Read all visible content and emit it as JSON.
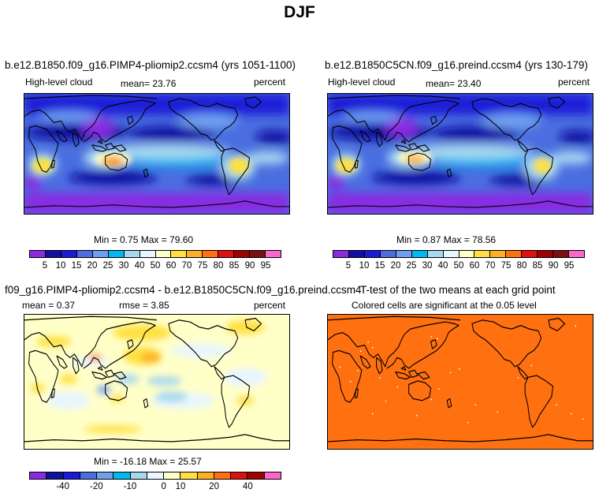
{
  "figure": {
    "title": "DJF"
  },
  "panels": [
    {
      "id": "case",
      "title": "b.e12.B1850.f09_g16.PIMP4-pliomip2.ccsm4 (yrs 1051-1100)",
      "left_label": "High-level cloud",
      "mean_label": "mean=  23.76",
      "units": "percent",
      "minmax": "Min =   0.75 Max =  79.60"
    },
    {
      "id": "control",
      "title": "b.e12.B1850C5CN.f09_g16.preind.ccsm4 (yrs 130-179)",
      "left_label": "High-level cloud",
      "mean_label": "mean=  23.40",
      "units": "percent",
      "minmax": "Min =   0.87 Max =  78.56"
    },
    {
      "id": "difference",
      "title": "f09_g16.PIMP4-pliomip2.ccsm4 - b.e12.B1850C5CN.f09_g16.preind.ccsm4",
      "left_label": "mean =   0.37",
      "mean_label": "rmse =   3.85",
      "units": "percent",
      "minmax": "Min = -16.18 Max =  25.57"
    },
    {
      "id": "ttest",
      "title": "T-test of the two means at each grid point",
      "subtitle": "Colored cells are significant at the 0.05 level"
    }
  ],
  "colorbar_abs": {
    "labels": [
      "5",
      "10",
      "15",
      "20",
      "25",
      "30",
      "40",
      "50",
      "60",
      "70",
      "75",
      "80",
      "85",
      "90",
      "95"
    ],
    "colors": [
      "#8a2be2",
      "#1010a0",
      "#1a1ad8",
      "#4a6ee0",
      "#6fa0f0",
      "#00b8f0",
      "#a8d8f0",
      "#e8f6ff",
      "#ffffc8",
      "#ffe040",
      "#ffb020",
      "#ff7010",
      "#e01010",
      "#a00000",
      "#7a1010",
      "#ff66cc"
    ]
  },
  "colorbar_diff": {
    "labels": [
      "-40",
      "-20",
      "-10",
      "0",
      "10",
      "20",
      "40"
    ],
    "colors": [
      "#8a2be2",
      "#1010a0",
      "#1a1ad8",
      "#4a6ee0",
      "#6fa0f0",
      "#00b8f0",
      "#a8d8f0",
      "#e8f6ff",
      "#ffffc8",
      "#ffe040",
      "#ffb020",
      "#ff7010",
      "#e01010",
      "#a00000",
      "#ff66cc"
    ]
  },
  "chart_data": [
    {
      "type": "heatmap",
      "title": "b.e12.B1850.f09_g16.PIMP4-pliomip2.ccsm4 (yrs 1051-1100)",
      "variable": "High-level cloud",
      "units": "percent",
      "mean": 23.76,
      "min": 0.75,
      "max": 79.6,
      "levels": [
        5,
        10,
        15,
        20,
        25,
        30,
        40,
        50,
        60,
        70,
        75,
        80,
        85,
        90,
        95
      ]
    },
    {
      "type": "heatmap",
      "title": "b.e12.B1850C5CN.f09_g16.preind.ccsm4 (yrs 130-179)",
      "variable": "High-level cloud",
      "units": "percent",
      "mean": 23.4,
      "min": 0.87,
      "max": 78.56,
      "levels": [
        5,
        10,
        15,
        20,
        25,
        30,
        40,
        50,
        60,
        70,
        75,
        80,
        85,
        90,
        95
      ]
    },
    {
      "type": "heatmap",
      "title": "f09_g16.PIMP4-pliomip2.ccsm4 - b.e12.B1850C5CN.f09_g16.preind.ccsm4",
      "units": "percent",
      "mean": 0.37,
      "rmse": 3.85,
      "min": -16.18,
      "max": 25.57,
      "levels": [
        -40,
        -20,
        -10,
        0,
        10,
        20,
        40
      ]
    },
    {
      "type": "heatmap",
      "title": "T-test of the two means at each grid point",
      "note": "Colored cells are significant at the 0.05 level",
      "significance_level": 0.05
    }
  ]
}
